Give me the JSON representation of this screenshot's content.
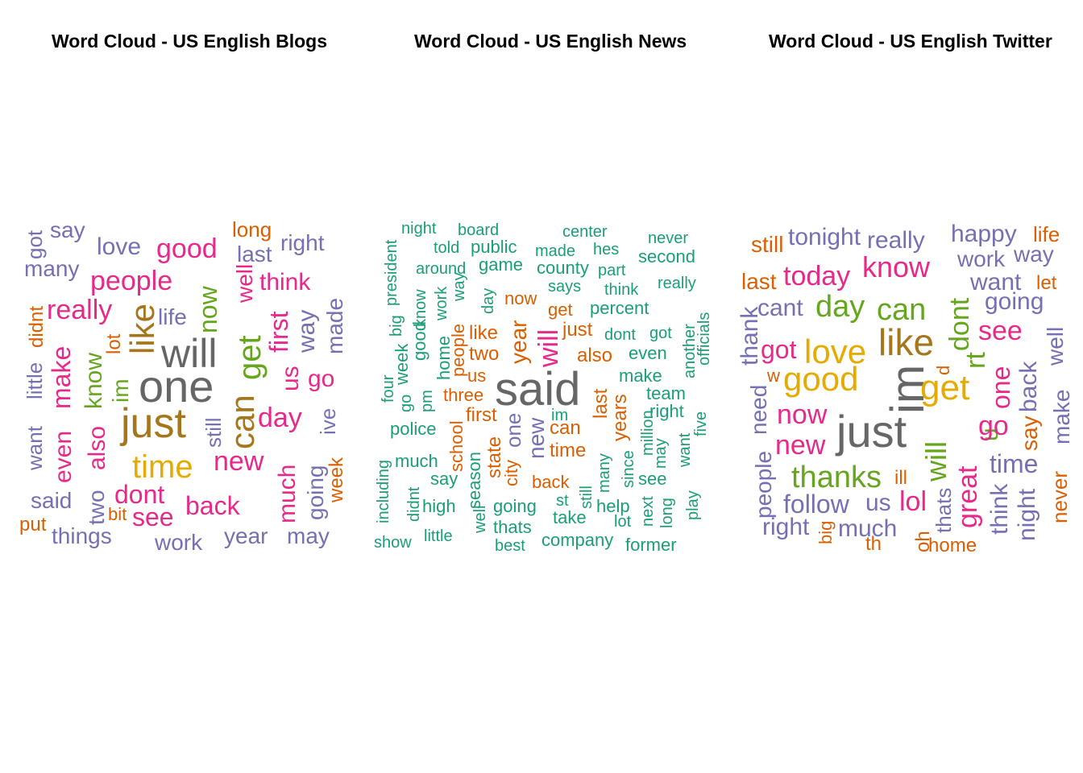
{
  "titles": [
    "Word Cloud - US English Blogs",
    "Word Cloud - US English News",
    "Word Cloud - US English Twitter"
  ],
  "colors": {
    "green": "#1B9E77",
    "orange": "#D95F02",
    "purple": "#7570B3",
    "pink": "#E7298A",
    "lime": "#66A61E",
    "gold": "#E6AB02",
    "brown": "#A6761D",
    "gray": "#666666"
  },
  "chart_data": [
    {
      "type": "wordcloud",
      "title": "Word Cloud - US English Blogs",
      "words": [
        "one",
        "will",
        "just",
        "like",
        "can",
        "time",
        "get",
        "now",
        "know",
        "people",
        "good",
        "new",
        "really",
        "day",
        "make",
        "also",
        "first",
        "us",
        "think",
        "well",
        "im",
        "see",
        "dont",
        "back",
        "much",
        "go",
        "love",
        "way",
        "right",
        "even",
        "last",
        "life",
        "say",
        "many",
        "got",
        "little",
        "want",
        "still",
        "said",
        "two",
        "going",
        "made",
        "didnt",
        "long",
        "work",
        "year",
        "may",
        "things",
        "ive",
        "week",
        "lot",
        "bit",
        "put"
      ]
    },
    {
      "type": "wordcloud",
      "title": "Word Cloud - US English News",
      "words": [
        "said",
        "will",
        "year",
        "first",
        "new",
        "one",
        "can",
        "also",
        "just",
        "last",
        "years",
        "two",
        "time",
        "like",
        "three",
        "state",
        "now",
        "get",
        "us",
        "people",
        "city",
        "school",
        "back",
        "season",
        "team",
        "make",
        "say",
        "much",
        "center",
        "night",
        "board",
        "told",
        "public",
        "game",
        "made",
        "hes",
        "never",
        "second",
        "county",
        "part",
        "around",
        "says",
        "think",
        "really",
        "percent",
        "dont",
        "got",
        "even",
        "president",
        "big",
        "week",
        "good",
        "know",
        "work",
        "way",
        "day",
        "home",
        "four",
        "go",
        "pm",
        "police",
        "including",
        "didnt",
        "high",
        "well",
        "going",
        "thats",
        "best",
        "show",
        "little",
        "st",
        "take",
        "still",
        "help",
        "lot",
        "next",
        "long",
        "company",
        "former",
        "im",
        "many",
        "since",
        "million",
        "right",
        "may",
        "want",
        "five",
        "see",
        "play",
        "another",
        "officials"
      ]
    },
    {
      "type": "wordcloud",
      "title": "Word Cloud - US English Twitter",
      "words": [
        "just",
        "im",
        "like",
        "get",
        "love",
        "good",
        "day",
        "can",
        "know",
        "thanks",
        "dont",
        "rt",
        "will",
        "great",
        "u",
        "see",
        "new",
        "now",
        "go",
        "today",
        "one",
        "got",
        "lol",
        "time",
        "going",
        "want",
        "back",
        "cant",
        "follow",
        "us",
        "much",
        "tonight",
        "really",
        "happy",
        "work",
        "way",
        "still",
        "last",
        "life",
        "let",
        "thank",
        "need",
        "people",
        "right",
        "night",
        "think",
        "say",
        "well",
        "make",
        "never",
        "thats",
        "ill",
        "oh",
        "home",
        "th",
        "big",
        "w",
        "d"
      ]
    }
  ]
}
